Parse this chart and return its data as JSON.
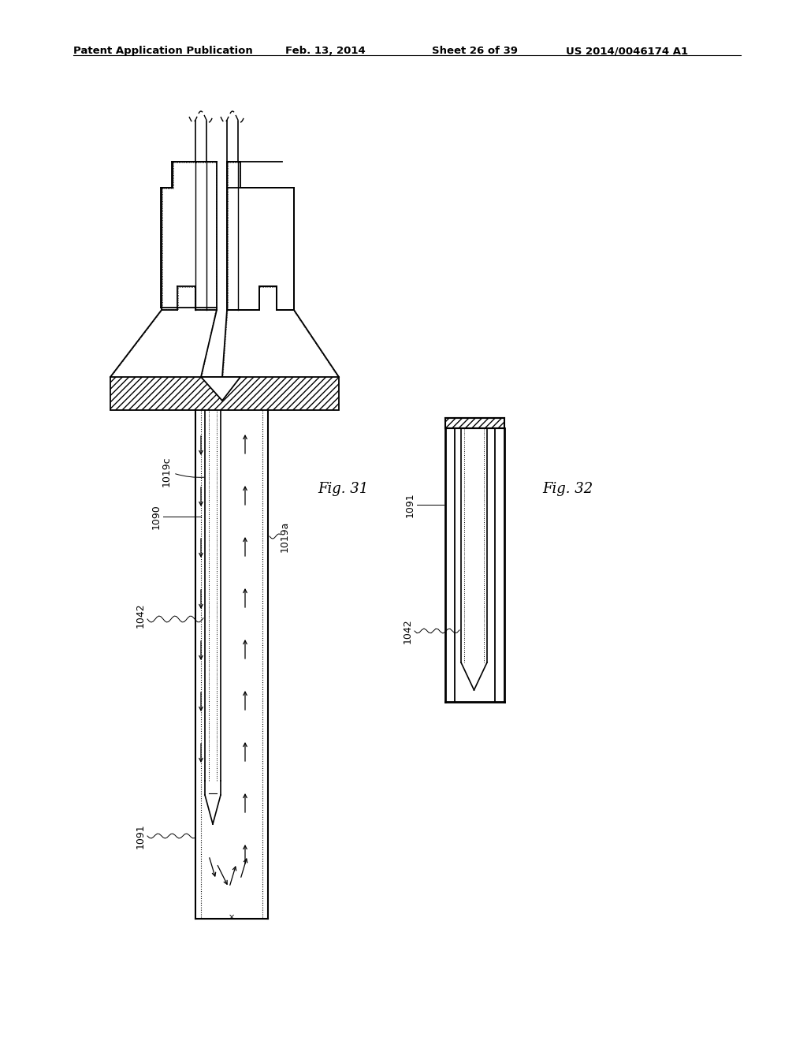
{
  "background_color": "#ffffff",
  "header_text": "Patent Application Publication",
  "header_date": "Feb. 13, 2014",
  "header_sheet": "Sheet 26 of 39",
  "header_patent": "US 2014/0046174 A1",
  "fig31_label": "Fig. 31",
  "fig32_label": "Fig. 32"
}
